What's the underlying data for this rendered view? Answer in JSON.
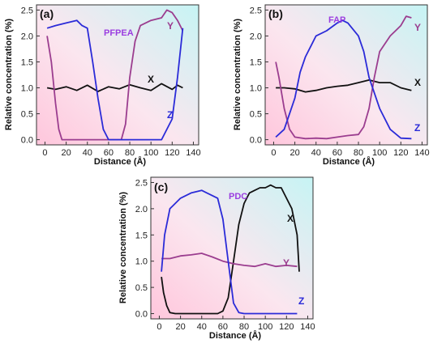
{
  "colors": {
    "X": "#111111",
    "Y": "#9b3d8f",
    "Z": "#2b2bd8",
    "title": "#9b3de0",
    "bg_start": "#ffc6dc",
    "bg_end": "#c6f4f4"
  },
  "chart_data": [
    {
      "type": "line",
      "panel_label": "(a)",
      "title": "PFPEA",
      "xlabel": "Distance (Å)",
      "ylabel": "Relative concentration (%)",
      "xlim": [
        -8,
        145
      ],
      "ylim": [
        -0.1,
        2.6
      ],
      "xticks": [
        "0",
        "20",
        "40",
        "60",
        "80",
        "100",
        "120",
        "140"
      ],
      "yticks": [
        "0.0",
        "0.5",
        "1.0",
        "1.5",
        "2.0",
        "2.5"
      ],
      "series": [
        {
          "name": "X",
          "x": [
            2,
            10,
            20,
            30,
            40,
            50,
            60,
            70,
            80,
            90,
            100,
            110,
            120,
            125,
            130
          ],
          "y": [
            1.0,
            0.97,
            1.02,
            0.95,
            1.05,
            0.93,
            1.02,
            0.98,
            1.06,
            1.0,
            0.95,
            1.08,
            0.97,
            1.05,
            1.0
          ]
        },
        {
          "name": "Y",
          "x": [
            2,
            6,
            10,
            13,
            16,
            20,
            40,
            60,
            72,
            76,
            80,
            85,
            90,
            100,
            110,
            115,
            120,
            125,
            130
          ],
          "y": [
            2.0,
            1.5,
            0.7,
            0.2,
            0.0,
            0.0,
            0.0,
            0.0,
            0.0,
            0.3,
            1.2,
            1.9,
            2.2,
            2.3,
            2.35,
            2.5,
            2.45,
            2.3,
            2.1
          ]
        },
        {
          "name": "Z",
          "x": [
            2,
            10,
            20,
            30,
            35,
            40,
            45,
            50,
            55,
            60,
            80,
            110,
            120,
            125,
            130
          ],
          "y": [
            2.15,
            2.2,
            2.25,
            2.3,
            2.2,
            2.15,
            1.5,
            0.8,
            0.2,
            0.0,
            0.0,
            0.0,
            0.4,
            1.2,
            2.15
          ]
        }
      ],
      "series_labels": [
        "X",
        "Y",
        "Z"
      ]
    },
    {
      "type": "line",
      "panel_label": "(b)",
      "title": "FAP",
      "xlabel": "Distance (Å)",
      "ylabel": "Relative concentration (%)",
      "xlim": [
        -8,
        145
      ],
      "ylim": [
        -0.1,
        2.6
      ],
      "xticks": [
        "0",
        "20",
        "40",
        "60",
        "80",
        "100",
        "120",
        "140"
      ],
      "yticks": [
        "0.0",
        "0.5",
        "1.0",
        "1.5",
        "2.0",
        "2.5"
      ],
      "series": [
        {
          "name": "X",
          "x": [
            2,
            10,
            20,
            30,
            40,
            50,
            60,
            70,
            80,
            90,
            100,
            110,
            120,
            130
          ],
          "y": [
            1.0,
            1.0,
            0.98,
            0.92,
            0.95,
            1.0,
            1.03,
            1.05,
            1.1,
            1.15,
            1.1,
            1.1,
            1.0,
            0.95
          ]
        },
        {
          "name": "Y",
          "x": [
            2,
            5,
            10,
            15,
            20,
            30,
            40,
            50,
            60,
            70,
            80,
            85,
            90,
            95,
            100,
            110,
            115,
            120,
            125,
            130
          ],
          "y": [
            1.5,
            1.2,
            0.6,
            0.2,
            0.05,
            0.02,
            0.03,
            0.02,
            0.05,
            0.08,
            0.1,
            0.25,
            0.6,
            1.2,
            1.7,
            2.0,
            2.1,
            2.2,
            2.38,
            2.35
          ]
        },
        {
          "name": "Z",
          "x": [
            2,
            10,
            20,
            25,
            30,
            35,
            40,
            50,
            60,
            65,
            70,
            80,
            85,
            90,
            100,
            110,
            120,
            130
          ],
          "y": [
            0.05,
            0.2,
            0.8,
            1.3,
            1.6,
            1.8,
            2.0,
            2.1,
            2.25,
            2.3,
            2.25,
            2.0,
            1.7,
            1.2,
            0.6,
            0.2,
            0.03,
            0.02
          ]
        }
      ],
      "series_labels": [
        "X",
        "Y",
        "Z"
      ]
    },
    {
      "type": "line",
      "panel_label": "(c)",
      "title": "PDC",
      "xlabel": "Distance (Å)",
      "ylabel": "Relative concentration (%)",
      "xlim": [
        -8,
        145
      ],
      "ylim": [
        -0.1,
        2.6
      ],
      "xticks": [
        "0",
        "20",
        "40",
        "60",
        "80",
        "100",
        "120",
        "140"
      ],
      "yticks": [
        "0.0",
        "0.5",
        "1.0",
        "1.5",
        "2.0",
        "2.5"
      ],
      "series": [
        {
          "name": "X",
          "x": [
            2,
            4,
            7,
            10,
            15,
            20,
            40,
            55,
            60,
            65,
            70,
            75,
            80,
            85,
            90,
            95,
            100,
            105,
            110,
            115,
            120,
            125,
            130,
            132
          ],
          "y": [
            0.7,
            0.4,
            0.15,
            0.02,
            0.0,
            0.0,
            0.0,
            0.0,
            0.05,
            0.3,
            1.0,
            1.7,
            2.1,
            2.3,
            2.35,
            2.4,
            2.4,
            2.45,
            2.4,
            2.4,
            2.2,
            2.0,
            1.5,
            0.8
          ]
        },
        {
          "name": "Y",
          "x": [
            2,
            10,
            20,
            30,
            40,
            50,
            60,
            70,
            80,
            90,
            100,
            110,
            120,
            130
          ],
          "y": [
            1.05,
            1.05,
            1.1,
            1.12,
            1.15,
            1.08,
            1.0,
            0.95,
            0.92,
            0.9,
            0.95,
            0.9,
            0.92,
            0.9
          ]
        },
        {
          "name": "Z",
          "x": [
            2,
            5,
            10,
            15,
            20,
            30,
            40,
            50,
            55,
            60,
            65,
            70,
            75,
            80,
            100,
            130
          ],
          "y": [
            0.8,
            1.5,
            2.0,
            2.1,
            2.2,
            2.3,
            2.35,
            2.25,
            2.2,
            1.8,
            1.0,
            0.2,
            0.02,
            0.0,
            0.0,
            0.0
          ]
        }
      ],
      "series_labels": [
        "X",
        "Y",
        "Z"
      ]
    }
  ]
}
